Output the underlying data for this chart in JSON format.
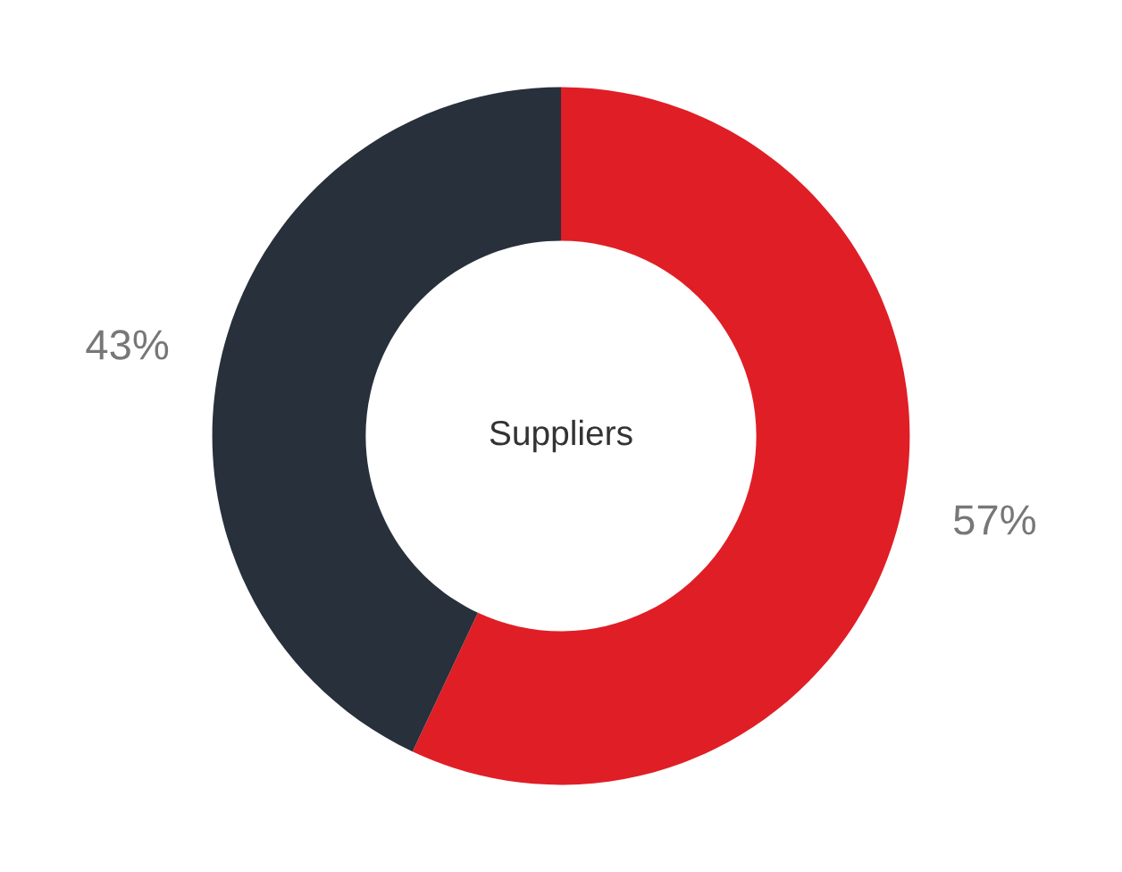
{
  "chart_data": {
    "type": "donut",
    "title": "Suppliers",
    "categories": [
      null,
      null
    ],
    "values": [
      57,
      43
    ],
    "colors": [
      "#e01e26",
      "#27303b"
    ],
    "value_labels": [
      "57%",
      "43%"
    ]
  }
}
